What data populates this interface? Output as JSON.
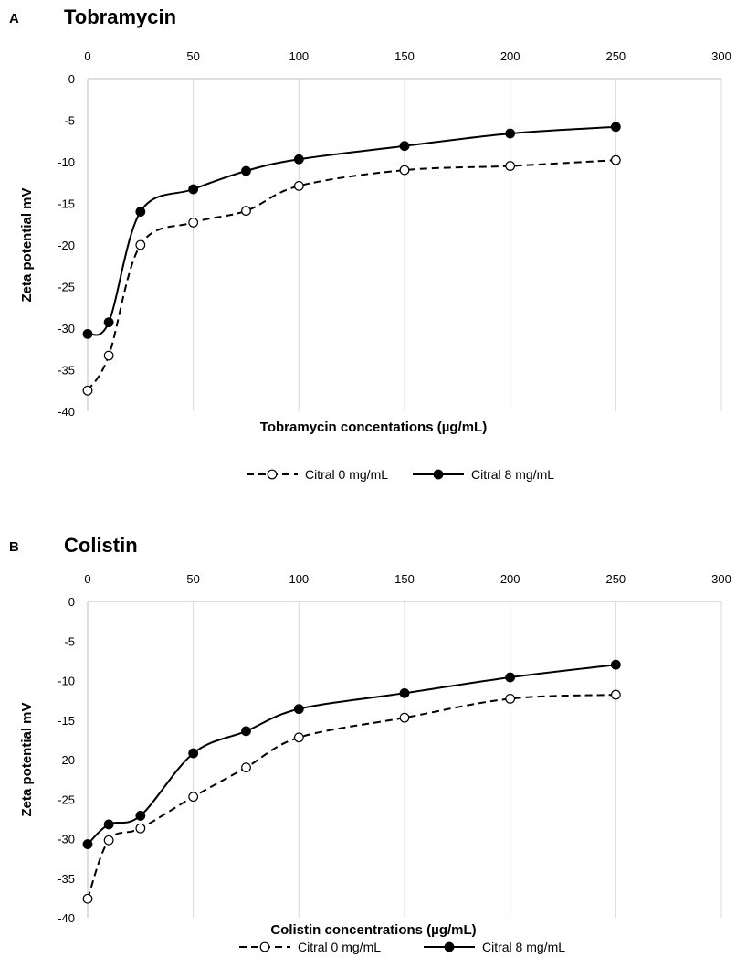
{
  "chart_data": [
    {
      "panel_label": "A",
      "type": "line",
      "title": "Tobramycin",
      "xlabel": "Tobramycin concentations (µg/mL)",
      "ylabel": "Zeta potential mV",
      "x_axis_position": "top",
      "xlim": [
        0,
        300
      ],
      "ylim": [
        -40,
        0
      ],
      "xticks": [
        0,
        50,
        100,
        150,
        200,
        250,
        300
      ],
      "yticks": [
        0,
        -5,
        -10,
        -15,
        -20,
        -25,
        -30,
        -35,
        -40
      ],
      "grid": "vertical",
      "legend_position": "bottom",
      "x": [
        0,
        10,
        25,
        50,
        75,
        100,
        150,
        200,
        250
      ],
      "series": [
        {
          "name": "Citral 0 mg/mL",
          "style": "dashed",
          "marker": "open-circle",
          "values": [
            -37.5,
            -33.3,
            -20.0,
            -17.3,
            -15.9,
            -12.9,
            -11.0,
            -10.5,
            -9.8
          ]
        },
        {
          "name": "Citral 8 mg/mL",
          "style": "solid",
          "marker": "filled-circle",
          "values": [
            -30.7,
            -29.3,
            -16.0,
            -13.3,
            -11.1,
            -9.7,
            -8.1,
            -6.6,
            -5.8
          ]
        }
      ]
    },
    {
      "panel_label": "B",
      "type": "line",
      "title": "Colistin",
      "xlabel": "Colistin concentrations (µg/mL)",
      "ylabel": "Zeta potential mV",
      "x_axis_position": "top",
      "xlim": [
        0,
        300
      ],
      "ylim": [
        -40,
        0
      ],
      "xticks": [
        0,
        50,
        100,
        150,
        200,
        250,
        300
      ],
      "yticks": [
        0,
        -5,
        -10,
        -15,
        -20,
        -25,
        -30,
        -35,
        -40
      ],
      "grid": "vertical",
      "legend_position": "bottom",
      "x": [
        0,
        10,
        25,
        50,
        75,
        100,
        150,
        200,
        250
      ],
      "series": [
        {
          "name": "Citral 0 mg/mL",
          "style": "dashed",
          "marker": "open-circle",
          "values": [
            -37.6,
            -30.2,
            -28.7,
            -24.7,
            -21.0,
            -17.2,
            -14.7,
            -12.3,
            -11.8
          ]
        },
        {
          "name": "Citral 8 mg/mL",
          "style": "solid",
          "marker": "filled-circle",
          "values": [
            -30.7,
            -28.2,
            -27.1,
            -19.2,
            -16.4,
            -13.6,
            -11.6,
            -9.6,
            -8.0
          ]
        }
      ]
    }
  ]
}
